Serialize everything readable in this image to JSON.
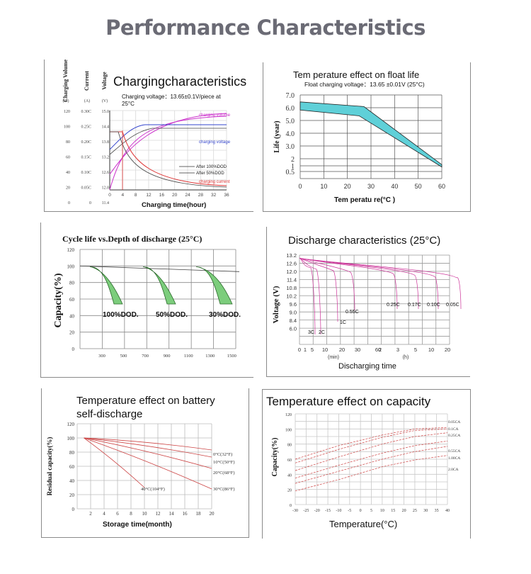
{
  "page": {
    "title": "Performance Characteristics"
  },
  "chart_data": [
    {
      "type": "line",
      "title": "Chargingcharacteristics",
      "subtitle_line1": "Charging voltage：13.65±0.1V/piece at",
      "subtitle_line2": "25°C",
      "xlabel": "Charging time(hour)",
      "x_ticks": [
        0,
        4,
        8,
        12,
        16,
        20,
        24,
        28,
        32,
        36
      ],
      "xlim": [
        0,
        36
      ],
      "axis_headers": [
        {
          "name": "Charging Volume",
          "unit": "(%)",
          "ticks": [
            "120",
            "100",
            "80",
            "60",
            "40",
            "20",
            "0"
          ]
        },
        {
          "name": "Current",
          "unit": "(A)",
          "ticks": [
            "0.30C",
            "0.25C",
            "0.20C",
            "0.15C",
            "0.10C",
            "0.05C",
            "0"
          ]
        },
        {
          "name": "Voltage",
          "unit": "(V)",
          "ticks": [
            "15.0",
            "14.4",
            "13.8",
            "13.2",
            "12.6",
            "12.0",
            "11.4"
          ]
        }
      ],
      "series": [
        {
          "name": "charging volume",
          "color": "#cc33cc"
        },
        {
          "name": "charging voltage",
          "color": "#3344cc"
        },
        {
          "name": "charging current",
          "color": "#dd3333"
        },
        {
          "name": "After 100%DOD"
        },
        {
          "name": "After 50%DOD"
        }
      ]
    },
    {
      "type": "area",
      "title": "Tem perature    effect  on  float  life",
      "subtitle": "Float charging voltage：13.65 ±0.01V (25°C)",
      "ylabel": "Life  (year)",
      "xlabel": "Tem peratu  re(°C )",
      "x_ticks": [
        0,
        10,
        20,
        30,
        40,
        50,
        60
      ],
      "y_ticks": [
        "7.0",
        "6.0",
        "5.0",
        "4.0",
        "3.0",
        "2",
        "1",
        "0.5"
      ],
      "xlim": [
        0,
        60
      ],
      "band_upper": [
        [
          0,
          6.4
        ],
        [
          27,
          6.0
        ],
        [
          60,
          1.0
        ]
      ],
      "band_lower": [
        [
          0,
          5.7
        ],
        [
          25,
          5.2
        ],
        [
          60,
          0.8
        ]
      ],
      "fill_color": "#5fd0d8"
    },
    {
      "type": "area",
      "title": "Cycle life vs.Depth of discharge (25°C)",
      "ylabel": "Capacity(%)",
      "y_ticks": [
        120,
        100,
        80,
        60,
        40,
        20,
        0
      ],
      "x_ticks": [
        300,
        500,
        700,
        900,
        1100,
        1300,
        1500
      ],
      "band_labels": [
        "100%DOD.",
        "50%DOD.",
        "30%DOD."
      ],
      "fill_color": "#7ccd7c"
    },
    {
      "type": "line",
      "title": "Discharge characteristics (25°C)",
      "ylabel": "Voltage (V)",
      "xlabel": "Discharging time",
      "y_ticks": [
        "13.2",
        "12.6",
        "12.0",
        "11.4",
        "10.8",
        "10.2",
        "9.6",
        "9.0",
        "8.4",
        "6.0"
      ],
      "x_ticks_min": [
        "0",
        "1",
        "5",
        "10",
        "20",
        "30",
        "60"
      ],
      "x_ticks_h": [
        "2",
        "3",
        "5",
        "10",
        "20"
      ],
      "x_unit_min": "(min)",
      "x_unit_h": "(h)",
      "series_labels": [
        "3C",
        "2C",
        "1C",
        "0.55C",
        "0.25C",
        "0.17C",
        "0.10C",
        "0.05C"
      ],
      "line_color": "#cc3399"
    },
    {
      "type": "line",
      "title_line1": "Temperature effect on battery",
      "title_line2": "self-discharge",
      "ylabel": "Residual capacity(%)",
      "xlabel": "Storage time(month)",
      "y_ticks": [
        120,
        100,
        80,
        60,
        40,
        20,
        0
      ],
      "x_ticks": [
        2,
        4,
        6,
        8,
        10,
        12,
        14,
        16,
        18,
        20
      ],
      "xlim": [
        0,
        20
      ],
      "ylim": [
        0,
        120
      ],
      "series": [
        {
          "name": "0°C(32°F)",
          "points": [
            [
              1,
              100
            ],
            [
              20,
              83
            ]
          ]
        },
        {
          "name": "10°C(50°F)",
          "points": [
            [
              1,
              100
            ],
            [
              20,
              73
            ]
          ]
        },
        {
          "name": "20°C(68°F)",
          "points": [
            [
              1,
              100
            ],
            [
              20,
              57
            ]
          ]
        },
        {
          "name": "30°C(86°F)",
          "points": [
            [
              1,
              100
            ],
            [
              20,
              28
            ]
          ]
        },
        {
          "name": "40°C(104°F)",
          "points": [
            [
              1,
              100
            ],
            [
              10,
              30
            ]
          ]
        }
      ],
      "line_color": "#cc4444"
    },
    {
      "type": "line",
      "title": "Temperature effect on capacity",
      "ylabel": "Capacity(%)",
      "xlabel": "Temperature(°C)",
      "y_ticks": [
        120,
        100,
        80,
        60,
        40,
        20,
        0
      ],
      "x_ticks": [
        -30,
        -25,
        -20,
        -15,
        -10,
        -5,
        0,
        5,
        10,
        15,
        20,
        25,
        30,
        35,
        40
      ],
      "xlim": [
        -30,
        40
      ],
      "ylim": [
        0,
        120
      ],
      "series": [
        {
          "name": "0.05CA",
          "points": [
            [
              -30,
              60
            ],
            [
              -10,
              78
            ],
            [
              10,
              92
            ],
            [
              25,
              100
            ],
            [
              40,
              102
            ]
          ]
        },
        {
          "name": "0.1CA",
          "points": [
            [
              -30,
              55
            ],
            [
              -10,
              73
            ],
            [
              10,
              89
            ],
            [
              25,
              98
            ],
            [
              40,
              100
            ]
          ]
        },
        {
          "name": "0.25CA",
          "points": [
            [
              -30,
              45
            ],
            [
              -10,
              63
            ],
            [
              10,
              80
            ],
            [
              25,
              90
            ],
            [
              40,
              95
            ]
          ]
        },
        {
          "name": "0.55CA",
          "points": [
            [
              -30,
              35
            ],
            [
              -10,
              52
            ],
            [
              10,
              68
            ],
            [
              25,
              78
            ],
            [
              40,
              84
            ]
          ]
        },
        {
          "name": "1.00CA",
          "points": [
            [
              -30,
              28
            ],
            [
              -10,
              44
            ],
            [
              10,
              60
            ],
            [
              25,
              70
            ],
            [
              40,
              77
            ]
          ]
        },
        {
          "name": "2.0CA",
          "points": [
            [
              -30,
              18
            ],
            [
              -10,
              33
            ],
            [
              10,
              50
            ],
            [
              25,
              59
            ],
            [
              40,
              65
            ]
          ]
        }
      ],
      "line_color": "#cc4444"
    }
  ]
}
